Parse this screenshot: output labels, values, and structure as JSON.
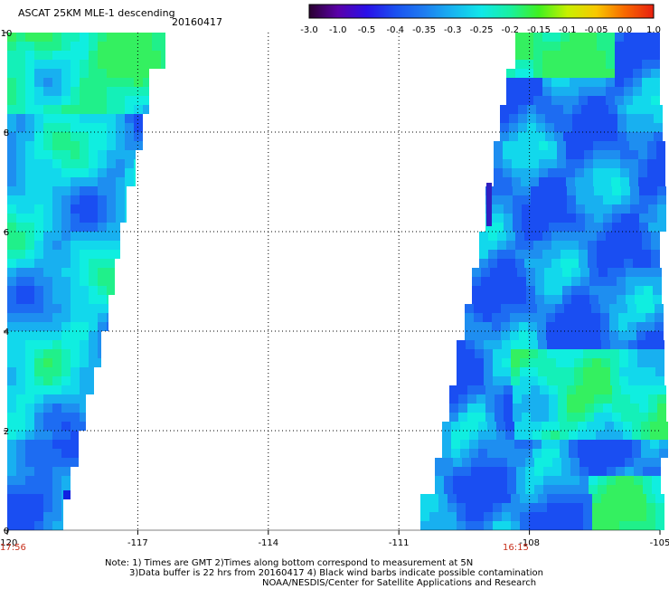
{
  "title": "ASCAT 25KM MLE-1 descending",
  "date": "20160417",
  "colorbar": {
    "tick_labels": [
      "-3.0",
      "-1.0",
      "-0.5",
      "-0.4",
      "-0.35",
      "-0.3",
      "-0.25",
      "-0.2",
      "-0.15",
      "-0.1",
      "-0.05",
      "0.0",
      "1.0"
    ],
    "colors": [
      "#2a0030",
      "#5a00a8",
      "#2a10e8",
      "#1a50f0",
      "#1e7cf0",
      "#18b4f0",
      "#10e8e8",
      "#18f0a0",
      "#40f020",
      "#c8f000",
      "#f8c800",
      "#f86800",
      "#e82010"
    ]
  },
  "axes": {
    "x_tick_labels": [
      "-120",
      "-117",
      "-114",
      "-111",
      "-108",
      "-105"
    ],
    "y_tick_labels": [
      "0",
      "2",
      "4",
      "6",
      "8",
      "10"
    ]
  },
  "times": {
    "left": "17:56",
    "right": "16:15"
  },
  "notes": {
    "line1": "Note: 1) Times are GMT 2)Times along bottom correspond to measurement at 5N",
    "line2": "3)Data buffer is 22 hrs from 20160417 4) Black wind barbs indicate possible contamination",
    "line3": "NOAA/NESDIS/Center for Satellite Applications and Research"
  }
}
